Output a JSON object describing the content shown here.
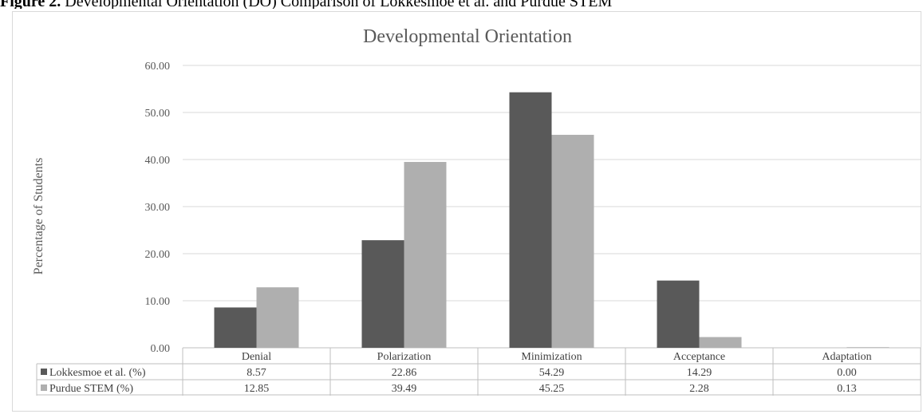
{
  "caption": {
    "bold": "Figure 2.",
    "text": " Developmental Orientation (DO) Comparison of Lokkesmoe et al. and Purdue STEM"
  },
  "chart_data": {
    "type": "bar",
    "title": "Developmental Orientation",
    "xlabel": "",
    "ylabel": "Percentage of Students",
    "ylim": [
      0,
      60
    ],
    "yticks": [
      "0.00",
      "10.00",
      "20.00",
      "30.00",
      "40.00",
      "50.00",
      "60.00"
    ],
    "grid": true,
    "legend": "data-table",
    "categories": [
      "Denial",
      "Polarization",
      "Minimization",
      "Acceptance",
      "Adaptation"
    ],
    "series": [
      {
        "name": "Lokkesmoe et al. (%)",
        "color": "#595959",
        "values": [
          8.57,
          22.86,
          54.29,
          14.29,
          0.0
        ],
        "labels": [
          "8.57",
          "22.86",
          "54.29",
          "14.29",
          "0.00"
        ]
      },
      {
        "name": "Purdue STEM (%)",
        "color": "#afafaf",
        "values": [
          12.85,
          39.49,
          45.25,
          2.28,
          0.13
        ],
        "labels": [
          "12.85",
          "39.49",
          "45.25",
          "2.28",
          "0.13"
        ]
      }
    ]
  }
}
